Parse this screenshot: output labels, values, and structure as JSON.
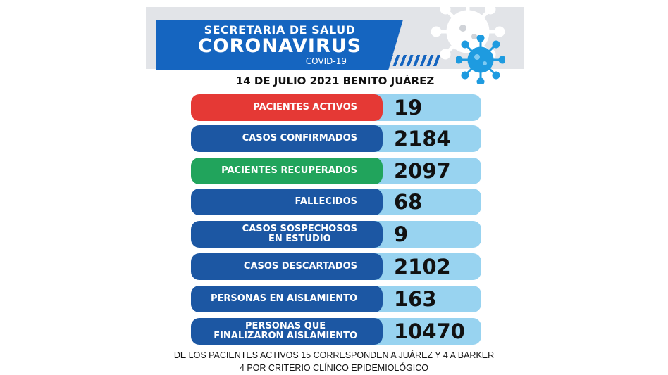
{
  "header": {
    "line1": "SECRETARIA DE SALUD",
    "line2": "CORONAVIRUS",
    "line3": "COVID-19"
  },
  "date_line": "14 DE JULIO 2021 BENITO JUÁREZ",
  "rows": [
    {
      "label": "PACIENTES ACTIVOS",
      "value": "19",
      "color": "#e53935"
    },
    {
      "label": "CASOS CONFIRMADOS",
      "value": "2184",
      "color": "#1c57a3"
    },
    {
      "label": "PACIENTES RECUPERADOS",
      "value": "2097",
      "color": "#21a45c"
    },
    {
      "label": "FALLECIDOS",
      "value": "68",
      "color": "#1c57a3"
    },
    {
      "label": "CASOS SOSPECHOSOS\nEN ESTUDIO",
      "value": "9",
      "color": "#1c57a3"
    },
    {
      "label": "CASOS DESCARTADOS",
      "value": "2102",
      "color": "#1c57a3"
    },
    {
      "label": "PERSONAS EN AISLAMIENTO",
      "value": "163",
      "color": "#1c57a3"
    },
    {
      "label": "PERSONAS QUE\nFINALIZARON AISLAMIENTO",
      "value": "10470",
      "color": "#1c57a3"
    }
  ],
  "footer": {
    "line1": "DE LOS PACIENTES ACTIVOS  15 CORRESPONDEN A JUÁREZ Y 4 A BARKER",
    "line2": "4 POR CRITERIO CLÍNICO EPIDEMIOLÓGICO"
  },
  "icons": [
    "virus-large-icon",
    "virus-small-icon"
  ]
}
